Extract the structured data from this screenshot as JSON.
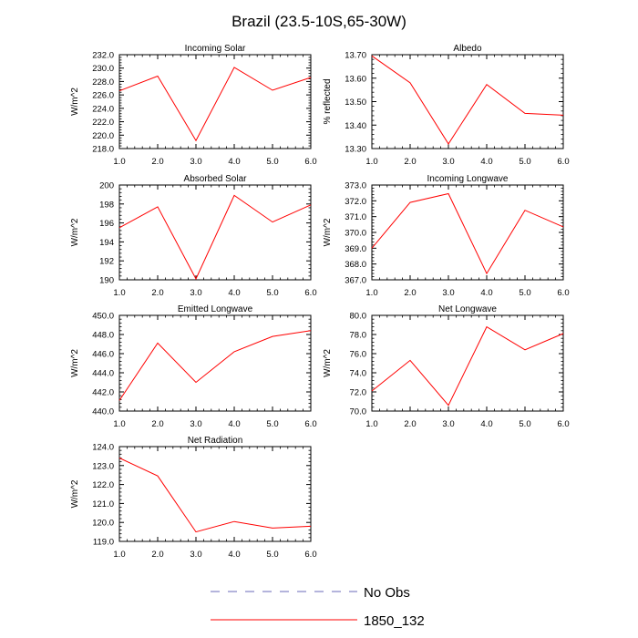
{
  "figure": {
    "title": "Brazil (23.5-10S,65-30W)"
  },
  "legend": {
    "entries": [
      {
        "label": "No Obs",
        "color": "#6a6ab8",
        "style": "dashed"
      },
      {
        "label": "1850_132",
        "color": "#ff0000",
        "style": "solid"
      }
    ]
  },
  "chart_data": [
    {
      "type": "line",
      "title": "Incoming Solar",
      "ylabel": "W/m^2",
      "xlabel": "",
      "xlim": [
        1.0,
        6.0
      ],
      "xticks": [
        "1.0",
        "2.0",
        "3.0",
        "4.0",
        "5.0",
        "6.0"
      ],
      "ylim": [
        218.0,
        232.0
      ],
      "yticks": [
        "218.0",
        "220.0",
        "222.0",
        "224.0",
        "226.0",
        "228.0",
        "230.0",
        "232.0"
      ],
      "series": [
        {
          "name": "1850_132",
          "x": [
            1,
            2,
            3,
            4,
            5,
            6
          ],
          "values": [
            226.6,
            228.8,
            219.2,
            230.1,
            226.7,
            228.6
          ]
        }
      ]
    },
    {
      "type": "line",
      "title": "Albedo",
      "ylabel": "% reflected",
      "xlabel": "",
      "xlim": [
        1.0,
        6.0
      ],
      "xticks": [
        "1.0",
        "2.0",
        "3.0",
        "4.0",
        "5.0",
        "6.0"
      ],
      "ylim": [
        13.3,
        13.7
      ],
      "yticks": [
        "13.30",
        "13.40",
        "13.50",
        "13.60",
        "13.70"
      ],
      "series": [
        {
          "name": "1850_132",
          "x": [
            1,
            2,
            3,
            4,
            5,
            6
          ],
          "values": [
            13.695,
            13.58,
            13.32,
            13.573,
            13.45,
            13.442
          ]
        }
      ]
    },
    {
      "type": "line",
      "title": "Absorbed Solar",
      "ylabel": "W/m^2",
      "xlabel": "",
      "xlim": [
        1.0,
        6.0
      ],
      "xticks": [
        "1.0",
        "2.0",
        "3.0",
        "4.0",
        "5.0",
        "6.0"
      ],
      "ylim": [
        190,
        200
      ],
      "yticks": [
        "190",
        "192",
        "194",
        "196",
        "198",
        "200"
      ],
      "series": [
        {
          "name": "1850_132",
          "x": [
            1,
            2,
            3,
            4,
            5,
            6
          ],
          "values": [
            195.5,
            197.7,
            190.1,
            198.9,
            196.1,
            197.9
          ]
        }
      ]
    },
    {
      "type": "line",
      "title": "Incoming Longwave",
      "ylabel": "W/m^2",
      "xlabel": "",
      "xlim": [
        1.0,
        6.0
      ],
      "xticks": [
        "1.0",
        "2.0",
        "3.0",
        "4.0",
        "5.0",
        "6.0"
      ],
      "ylim": [
        367.0,
        373.0
      ],
      "yticks": [
        "367.0",
        "368.0",
        "369.0",
        "370.0",
        "371.0",
        "372.0",
        "373.0"
      ],
      "series": [
        {
          "name": "1850_132",
          "x": [
            1,
            2,
            3,
            4,
            5,
            6
          ],
          "values": [
            369.0,
            371.9,
            372.45,
            367.4,
            371.4,
            370.35
          ]
        }
      ]
    },
    {
      "type": "line",
      "title": "Emitted Longwave",
      "ylabel": "W/m^2",
      "xlabel": "",
      "xlim": [
        1.0,
        6.0
      ],
      "xticks": [
        "1.0",
        "2.0",
        "3.0",
        "4.0",
        "5.0",
        "6.0"
      ],
      "ylim": [
        440.0,
        450.0
      ],
      "yticks": [
        "440.0",
        "442.0",
        "444.0",
        "446.0",
        "448.0",
        "450.0"
      ],
      "series": [
        {
          "name": "1850_132",
          "x": [
            1,
            2,
            3,
            4,
            5,
            6
          ],
          "values": [
            441.1,
            447.1,
            443.0,
            446.2,
            447.8,
            448.4
          ]
        }
      ]
    },
    {
      "type": "line",
      "title": "Net Longwave",
      "ylabel": "W/m^2",
      "xlabel": "",
      "xlim": [
        1.0,
        6.0
      ],
      "xticks": [
        "1.0",
        "2.0",
        "3.0",
        "4.0",
        "5.0",
        "6.0"
      ],
      "ylim": [
        70.0,
        80.0
      ],
      "yticks": [
        "70.0",
        "72.0",
        "74.0",
        "76.0",
        "78.0",
        "80.0"
      ],
      "series": [
        {
          "name": "1850_132",
          "x": [
            1,
            2,
            3,
            4,
            5,
            6
          ],
          "values": [
            72.1,
            75.3,
            70.6,
            78.8,
            76.4,
            78.1
          ]
        }
      ]
    },
    {
      "type": "line",
      "title": "Net Radiation",
      "ylabel": "W/m^2",
      "xlabel": "",
      "xlim": [
        1.0,
        6.0
      ],
      "xticks": [
        "1.0",
        "2.0",
        "3.0",
        "4.0",
        "5.0",
        "6.0"
      ],
      "ylim": [
        119.0,
        124.0
      ],
      "yticks": [
        "119.0",
        "120.0",
        "121.0",
        "122.0",
        "123.0",
        "124.0"
      ],
      "series": [
        {
          "name": "1850_132",
          "x": [
            1,
            2,
            3,
            4,
            5,
            6
          ],
          "values": [
            123.4,
            122.45,
            119.5,
            120.05,
            119.7,
            119.8
          ]
        }
      ]
    }
  ]
}
